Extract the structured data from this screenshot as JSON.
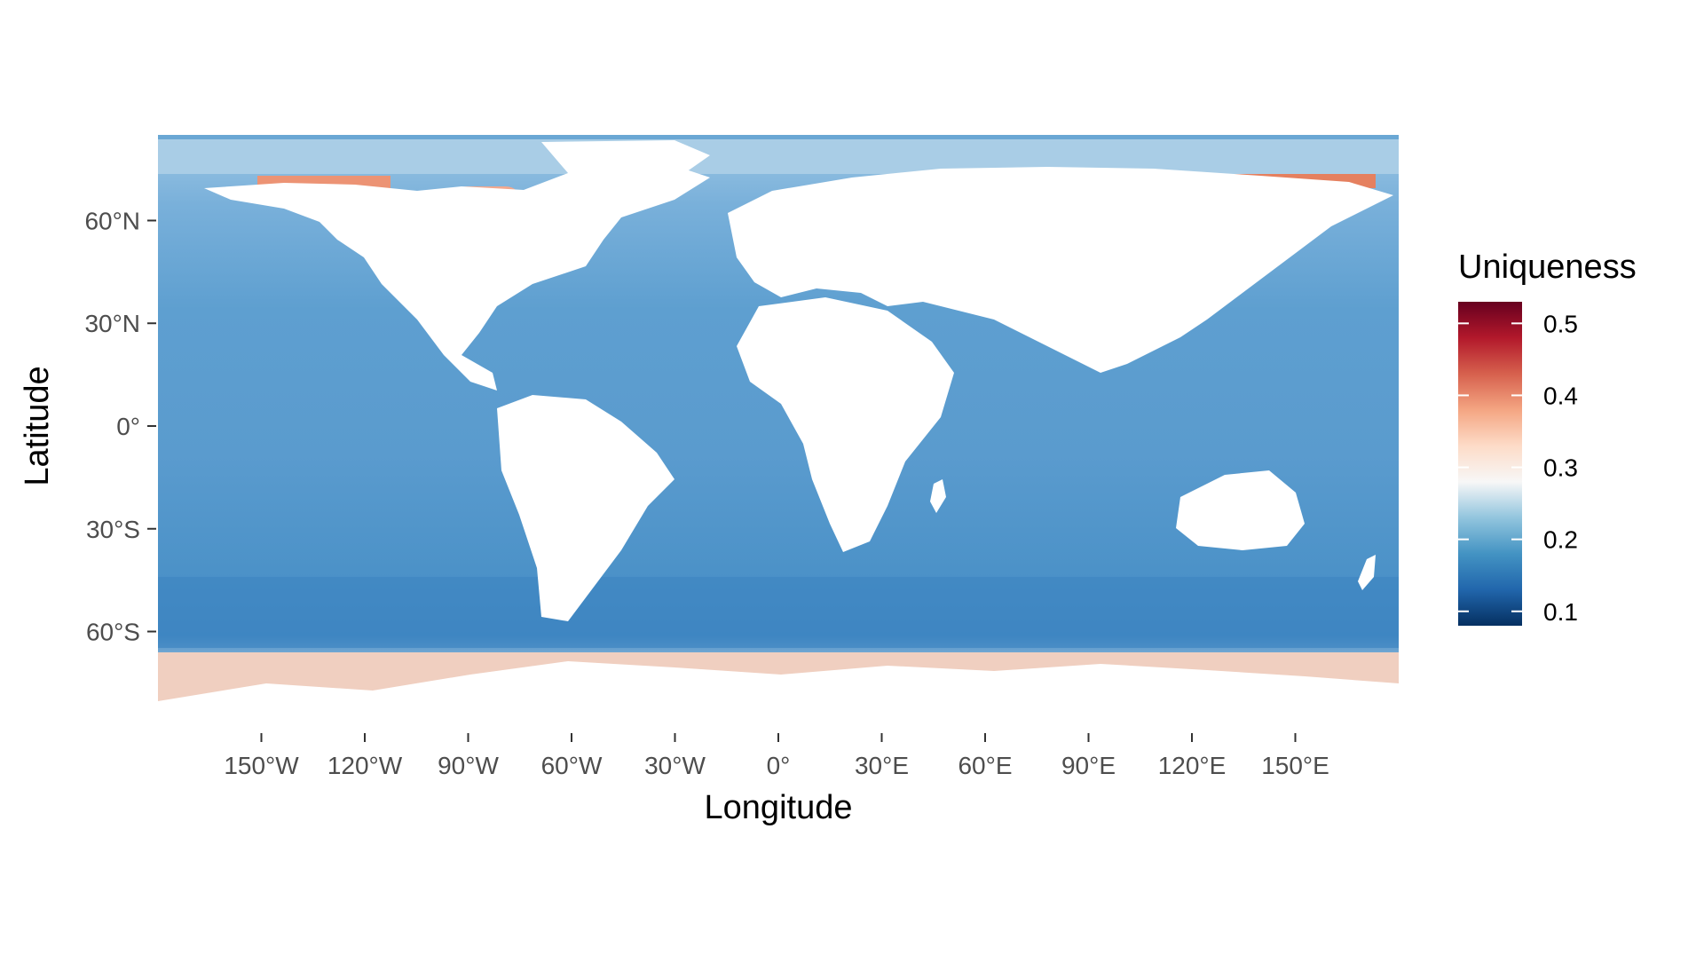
{
  "axes": {
    "x_title": "Longitude",
    "y_title": "Latitude",
    "x_range": [
      -180,
      180
    ],
    "y_range": [
      -85,
      85
    ],
    "x_ticks": [
      {
        "value": -150,
        "label": "150°W"
      },
      {
        "value": -120,
        "label": "120°W"
      },
      {
        "value": -90,
        "label": "90°W"
      },
      {
        "value": -60,
        "label": "60°W"
      },
      {
        "value": -30,
        "label": "30°W"
      },
      {
        "value": 0,
        "label": "0°"
      },
      {
        "value": 30,
        "label": "30°E"
      },
      {
        "value": 60,
        "label": "60°E"
      },
      {
        "value": 90,
        "label": "90°E"
      },
      {
        "value": 120,
        "label": "120°E"
      },
      {
        "value": 150,
        "label": "150°E"
      }
    ],
    "y_ticks": [
      {
        "value": 60,
        "label": "60°N"
      },
      {
        "value": 30,
        "label": "30°N"
      },
      {
        "value": 0,
        "label": "0°"
      },
      {
        "value": -30,
        "label": "30°S"
      },
      {
        "value": -60,
        "label": "60°S"
      }
    ]
  },
  "legend": {
    "title": "Uniqueness",
    "range": [
      0.08,
      0.53
    ],
    "ticks": [
      {
        "value": 0.5,
        "label": "0.5"
      },
      {
        "value": 0.4,
        "label": "0.4"
      },
      {
        "value": 0.3,
        "label": "0.3"
      },
      {
        "value": 0.2,
        "label": "0.2"
      },
      {
        "value": 0.1,
        "label": "0.1"
      }
    ],
    "colors": [
      "#053061",
      "#2166ac",
      "#4393c3",
      "#92c5de",
      "#f7f7f7",
      "#fddbc7",
      "#f4a582",
      "#d6604d",
      "#b2182b",
      "#67001f"
    ]
  },
  "map_colors": {
    "ocean": "#5e9fd0",
    "ocean_deep": "#3f86c2",
    "ocean_light": "#8ebee0",
    "polar": "#f2cbb8",
    "polar_high": "#ec9374",
    "land": "#ffffff"
  }
}
